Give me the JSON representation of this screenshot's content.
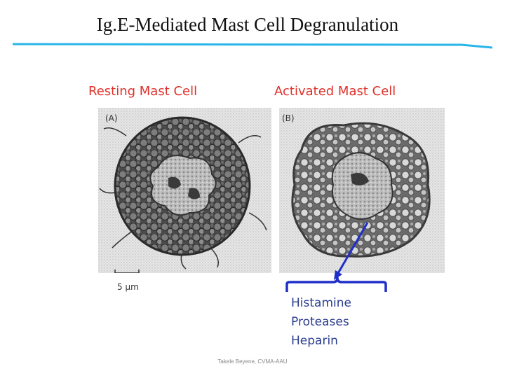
{
  "slide": {
    "title": "Ig.E-Mediated Mast Cell Degranulation",
    "labels": {
      "resting": "Resting Mast Cell",
      "activated": "Activated Mast Cell"
    },
    "panels": {
      "a_letter": "(A)",
      "b_letter": "(B)",
      "scale_bar": "5 μm"
    },
    "products": [
      "Histamine",
      "Proteases",
      "Heparin"
    ],
    "footer": "Takele Beyene, CVMA-AAU"
  },
  "colors": {
    "title_rule": "#29b5e8",
    "label_red": "#e0302a",
    "annotation_blue": "#1f2fc9",
    "products_text": "#2b3d8f"
  }
}
